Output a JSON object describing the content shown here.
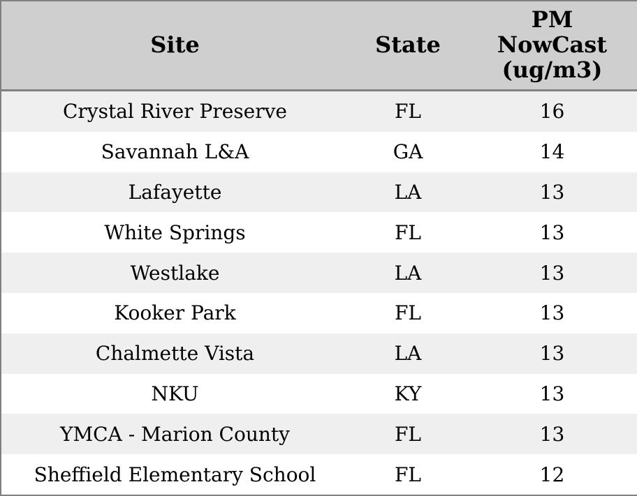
{
  "chart_data": {
    "type": "table",
    "title": "",
    "columns": [
      "Site",
      "State",
      "PM NowCast (ug/m3)"
    ],
    "rows": [
      [
        "Crystal River Preserve",
        "FL",
        16
      ],
      [
        "Savannah L&A",
        "GA",
        14
      ],
      [
        "Lafayette",
        "LA",
        13
      ],
      [
        "White Springs",
        "FL",
        13
      ],
      [
        "Westlake",
        "LA",
        13
      ],
      [
        "Kooker Park",
        "FL",
        13
      ],
      [
        "Chalmette Vista",
        "LA",
        13
      ],
      [
        "NKU",
        "KY",
        13
      ],
      [
        "YMCA - Marion County",
        "FL",
        13
      ],
      [
        "Sheffield Elementary School",
        "FL",
        12
      ]
    ]
  },
  "table": {
    "headers": {
      "site": "Site",
      "state": "State",
      "pm": "PM\nNowCast\n(ug/m3)"
    },
    "rows": [
      {
        "site": "Crystal River Preserve",
        "state": "FL",
        "pm": "16"
      },
      {
        "site": "Savannah L&A",
        "state": "GA",
        "pm": "14"
      },
      {
        "site": "Lafayette",
        "state": "LA",
        "pm": "13"
      },
      {
        "site": "White Springs",
        "state": "FL",
        "pm": "13"
      },
      {
        "site": "Westlake",
        "state": "LA",
        "pm": "13"
      },
      {
        "site": "Kooker Park",
        "state": "FL",
        "pm": "13"
      },
      {
        "site": "Chalmette Vista",
        "state": "LA",
        "pm": "13"
      },
      {
        "site": "NKU",
        "state": "KY",
        "pm": "13"
      },
      {
        "site": "YMCA - Marion County",
        "state": "FL",
        "pm": "13"
      },
      {
        "site": "Sheffield Elementary School",
        "state": "FL",
        "pm": "12"
      }
    ]
  },
  "colors": {
    "header_bg": "#cfcfcf",
    "row_alt_bg": "#efefef",
    "row_bg": "#ffffff",
    "border": "#808080",
    "text": "#000000"
  }
}
